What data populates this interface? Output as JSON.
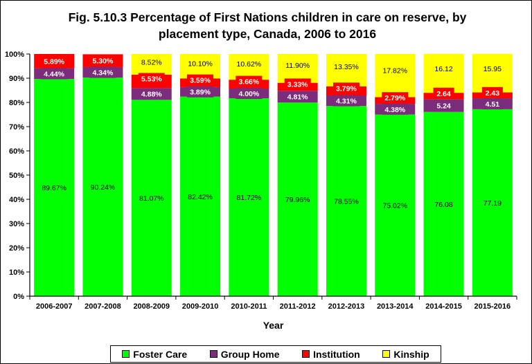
{
  "chart_data": {
    "type": "bar",
    "stacked": true,
    "title": "Fig. 5.10.3 Percentage of First Nations children in care on reserve, by placement type, Canada, 2006 to 2016",
    "title_lines": [
      "Fig. 5.10.3 Percentage of First Nations children in care on reserve, by",
      "placement type, Canada, 2006 to 2016"
    ],
    "xlabel": "Year",
    "ylabel": "",
    "ylim": [
      0,
      100
    ],
    "y_ticks": [
      "0%",
      "10%",
      "20%",
      "30%",
      "40%",
      "50%",
      "60%",
      "70%",
      "80%",
      "90%",
      "100%"
    ],
    "grid": false,
    "legend_position": "bottom",
    "categories": [
      "2006-2007",
      "2007-2008",
      "2008-2009",
      "2009-2010",
      "2010-2011",
      "2011-2012",
      "2012-2013",
      "2013-2014",
      "2014-2015",
      "2015-2016"
    ],
    "series": [
      {
        "name": "Foster Care",
        "color": "#00ff00",
        "values": [
          89.67,
          90.24,
          81.07,
          82.42,
          81.72,
          79.96,
          78.55,
          75.02,
          76.08,
          77.19
        ],
        "labels": [
          "89.67%",
          "90.24%",
          "81.07%",
          "82.42%",
          "81.72%",
          "79.96%",
          "78.55%",
          "75.02%",
          "76.08",
          "77.19"
        ]
      },
      {
        "name": "Group Home",
        "color": "#7b2c7b",
        "values": [
          4.44,
          4.34,
          4.88,
          3.89,
          4.0,
          4.81,
          4.31,
          4.38,
          5.24,
          4.51
        ],
        "labels": [
          "4.44%",
          "4.34%",
          "4.88%",
          "3.89%",
          "4.00%",
          "4.81%",
          "4.31%",
          "4.38%",
          "5.24",
          "4.51"
        ]
      },
      {
        "name": "Institution",
        "color": "#ff0000",
        "values": [
          5.89,
          5.3,
          5.53,
          3.59,
          3.66,
          3.33,
          3.79,
          2.79,
          2.64,
          2.43
        ],
        "labels": [
          "5.89%",
          "5.30%",
          "5.53%",
          "3.59%",
          "3.66%",
          "3.33%",
          "3.79%",
          "2.79%",
          "2.64",
          "2.43"
        ]
      },
      {
        "name": "Kinship",
        "color": "#ffff00",
        "values": [
          0,
          0,
          8.52,
          10.1,
          10.62,
          11.9,
          13.35,
          17.82,
          16.12,
          15.95
        ],
        "labels": [
          "",
          "",
          "8.52%",
          "10.10%",
          "10.62%",
          "11.90%",
          "13.35%",
          "17.82%",
          "16.12",
          "15.95"
        ]
      }
    ]
  }
}
